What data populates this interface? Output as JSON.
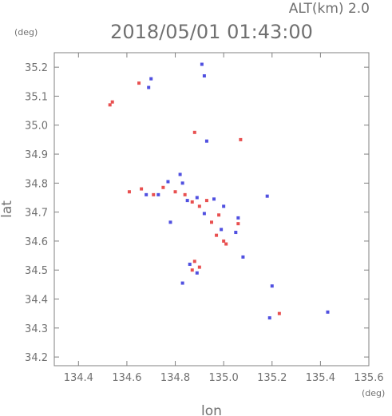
{
  "chart_data": {
    "type": "scatter",
    "title": "2018/05/01 01:43:00",
    "subtitle": "ALT(km) 2.0",
    "xlabel": "lon",
    "ylabel": "lat",
    "x_unit": "(deg)",
    "y_unit": "(deg)",
    "xlim": [
      134.3,
      135.6
    ],
    "ylim": [
      34.17,
      35.25
    ],
    "x_ticks": [
      "134.4",
      "134.6",
      "134.8",
      "135.0",
      "135.2",
      "135.4",
      "135.6"
    ],
    "y_ticks": [
      "34.2",
      "34.3",
      "34.4",
      "34.5",
      "34.6",
      "34.7",
      "34.8",
      "34.9",
      "35.0",
      "35.1",
      "35.2"
    ],
    "grid": false,
    "colors": {
      "positive": "#e85050",
      "negative": "#5050e0",
      "axis": "#808080",
      "text": "#707070"
    },
    "series": [
      {
        "values": [
          {
            "x": 134.53,
            "y": 35.07
          },
          {
            "x": 134.54,
            "y": 35.08
          },
          {
            "x": 134.65,
            "y": 35.145
          },
          {
            "x": 134.88,
            "y": 34.975
          },
          {
            "x": 135.07,
            "y": 34.95
          },
          {
            "x": 134.61,
            "y": 34.77
          },
          {
            "x": 134.66,
            "y": 34.78
          },
          {
            "x": 134.75,
            "y": 34.785
          },
          {
            "x": 134.8,
            "y": 34.77
          },
          {
            "x": 134.84,
            "y": 34.76
          },
          {
            "x": 134.87,
            "y": 34.735
          },
          {
            "x": 134.9,
            "y": 34.72
          },
          {
            "x": 134.93,
            "y": 34.74
          },
          {
            "x": 134.98,
            "y": 34.69
          },
          {
            "x": 135.0,
            "y": 34.6
          },
          {
            "x": 135.01,
            "y": 34.59
          },
          {
            "x": 134.97,
            "y": 34.62
          },
          {
            "x": 134.88,
            "y": 34.53
          },
          {
            "x": 134.87,
            "y": 34.5
          },
          {
            "x": 134.9,
            "y": 34.51
          },
          {
            "x": 135.23,
            "y": 34.35
          },
          {
            "x": 135.06,
            "y": 34.66
          },
          {
            "x": 134.95,
            "y": 34.665
          },
          {
            "x": 134.71,
            "y": 34.76
          }
        ]
      },
      {
        "values": [
          {
            "x": 134.69,
            "y": 35.13
          },
          {
            "x": 134.7,
            "y": 35.16
          },
          {
            "x": 134.91,
            "y": 35.21
          },
          {
            "x": 134.92,
            "y": 35.17
          },
          {
            "x": 134.93,
            "y": 34.945
          },
          {
            "x": 134.82,
            "y": 34.83
          },
          {
            "x": 134.73,
            "y": 34.76
          },
          {
            "x": 134.83,
            "y": 34.8
          },
          {
            "x": 134.77,
            "y": 34.805
          },
          {
            "x": 134.85,
            "y": 34.74
          },
          {
            "x": 134.96,
            "y": 34.745
          },
          {
            "x": 135.0,
            "y": 34.72
          },
          {
            "x": 134.99,
            "y": 34.64
          },
          {
            "x": 135.05,
            "y": 34.63
          },
          {
            "x": 135.06,
            "y": 34.68
          },
          {
            "x": 134.78,
            "y": 34.665
          },
          {
            "x": 134.86,
            "y": 34.52
          },
          {
            "x": 134.83,
            "y": 34.455
          },
          {
            "x": 134.89,
            "y": 34.49
          },
          {
            "x": 135.18,
            "y": 34.755
          },
          {
            "x": 135.08,
            "y": 34.545
          },
          {
            "x": 135.2,
            "y": 34.445
          },
          {
            "x": 135.19,
            "y": 34.335
          },
          {
            "x": 135.43,
            "y": 34.355
          },
          {
            "x": 134.68,
            "y": 34.76
          },
          {
            "x": 134.92,
            "y": 34.695
          },
          {
            "x": 134.89,
            "y": 34.75
          }
        ]
      }
    ]
  }
}
